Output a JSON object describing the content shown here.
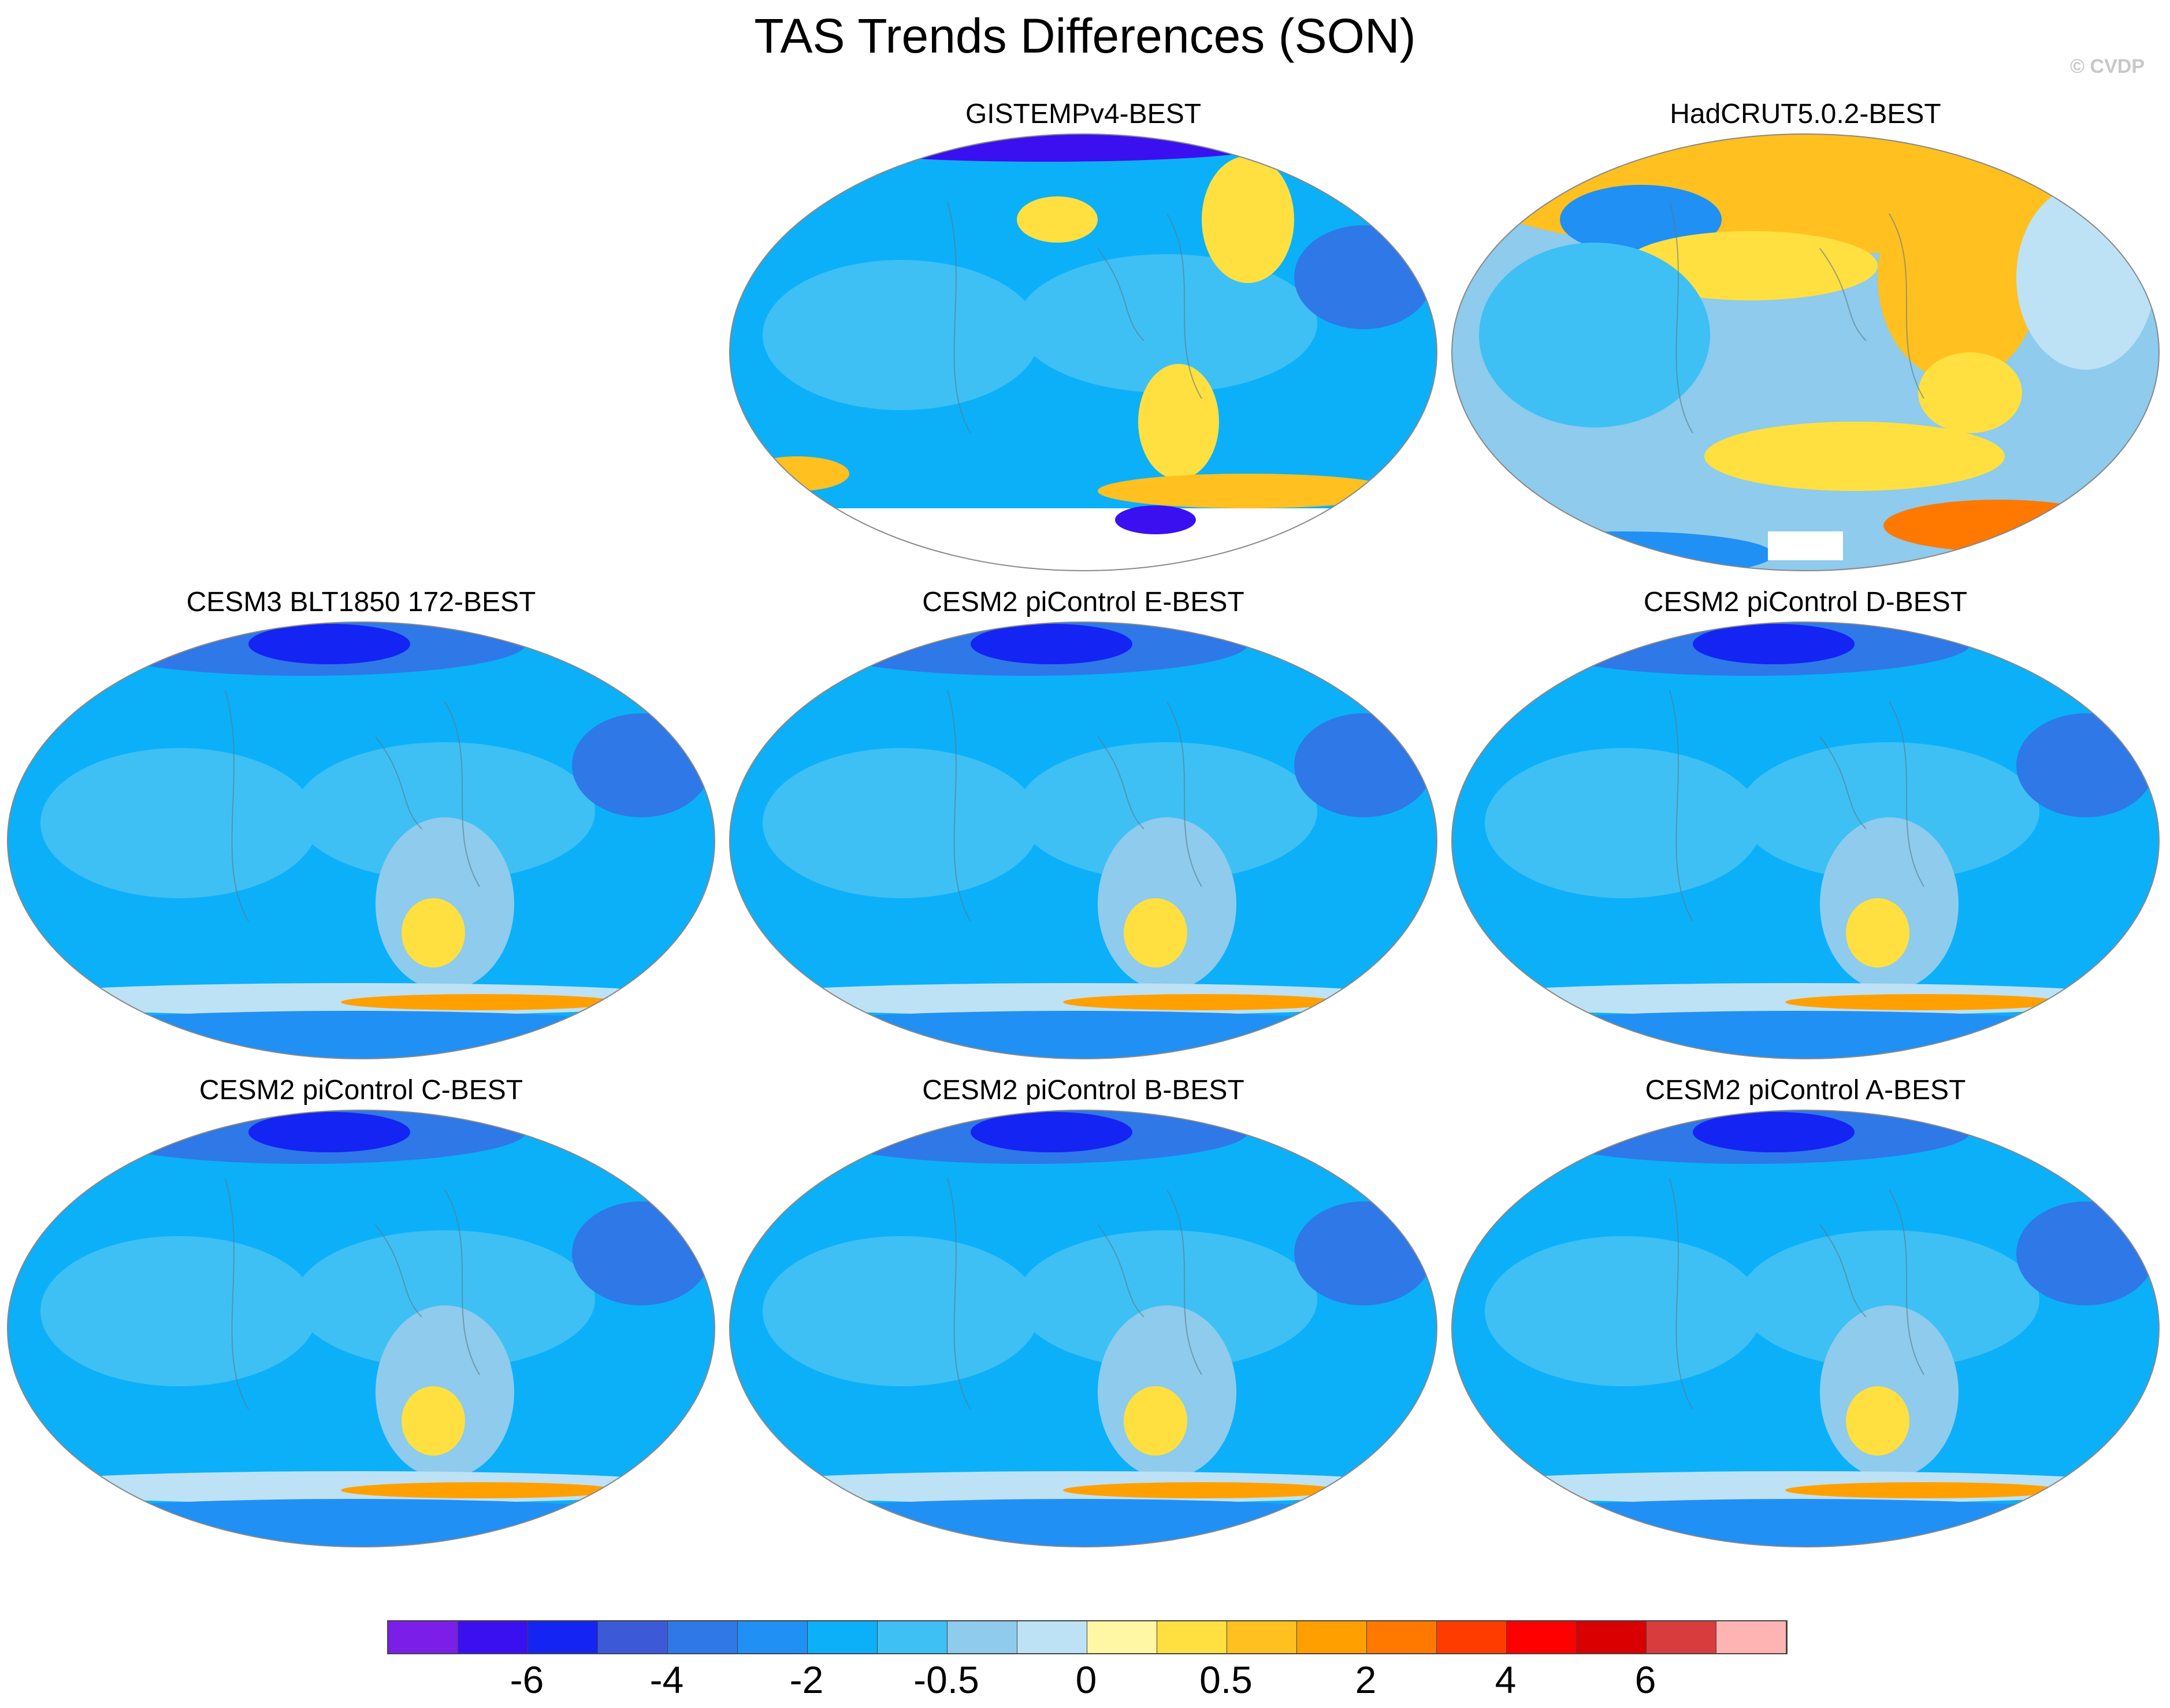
{
  "title": "TAS Trends Differences (SON)",
  "credit": "© CVDP",
  "panels": [
    {
      "label": "GISTEMPv4-BEST",
      "variant": "gistemp"
    },
    {
      "label": "HadCRUT5.0.2-BEST",
      "variant": "hadcrut"
    },
    {
      "label": "CESM3 BLT1850 172-BEST",
      "variant": "model"
    },
    {
      "label": "CESM2 piControl E-BEST",
      "variant": "model"
    },
    {
      "label": "CESM2 piControl D-BEST",
      "variant": "model"
    },
    {
      "label": "CESM2 piControl C-BEST",
      "variant": "model"
    },
    {
      "label": "CESM2 piControl B-BEST",
      "variant": "model"
    },
    {
      "label": "CESM2 piControl A-BEST",
      "variant": "model"
    }
  ],
  "colorbar": {
    "colors": [
      "#7a1ee8",
      "#3b10f0",
      "#1424f2",
      "#3c5ad8",
      "#2e78e8",
      "#2090f4",
      "#0cb0f8",
      "#3ec0f4",
      "#8ecbec",
      "#bde2f5",
      "#fff7a3",
      "#ffe040",
      "#ffc020",
      "#ffa000",
      "#ff7800",
      "#ff3c00",
      "#ff0000",
      "#d80000",
      "#d83c3c",
      "#ffb4b4"
    ],
    "tick_labels": [
      "-6",
      "-4",
      "-2",
      "-0.5",
      "0",
      "0.5",
      "2",
      "4",
      "6"
    ]
  }
}
